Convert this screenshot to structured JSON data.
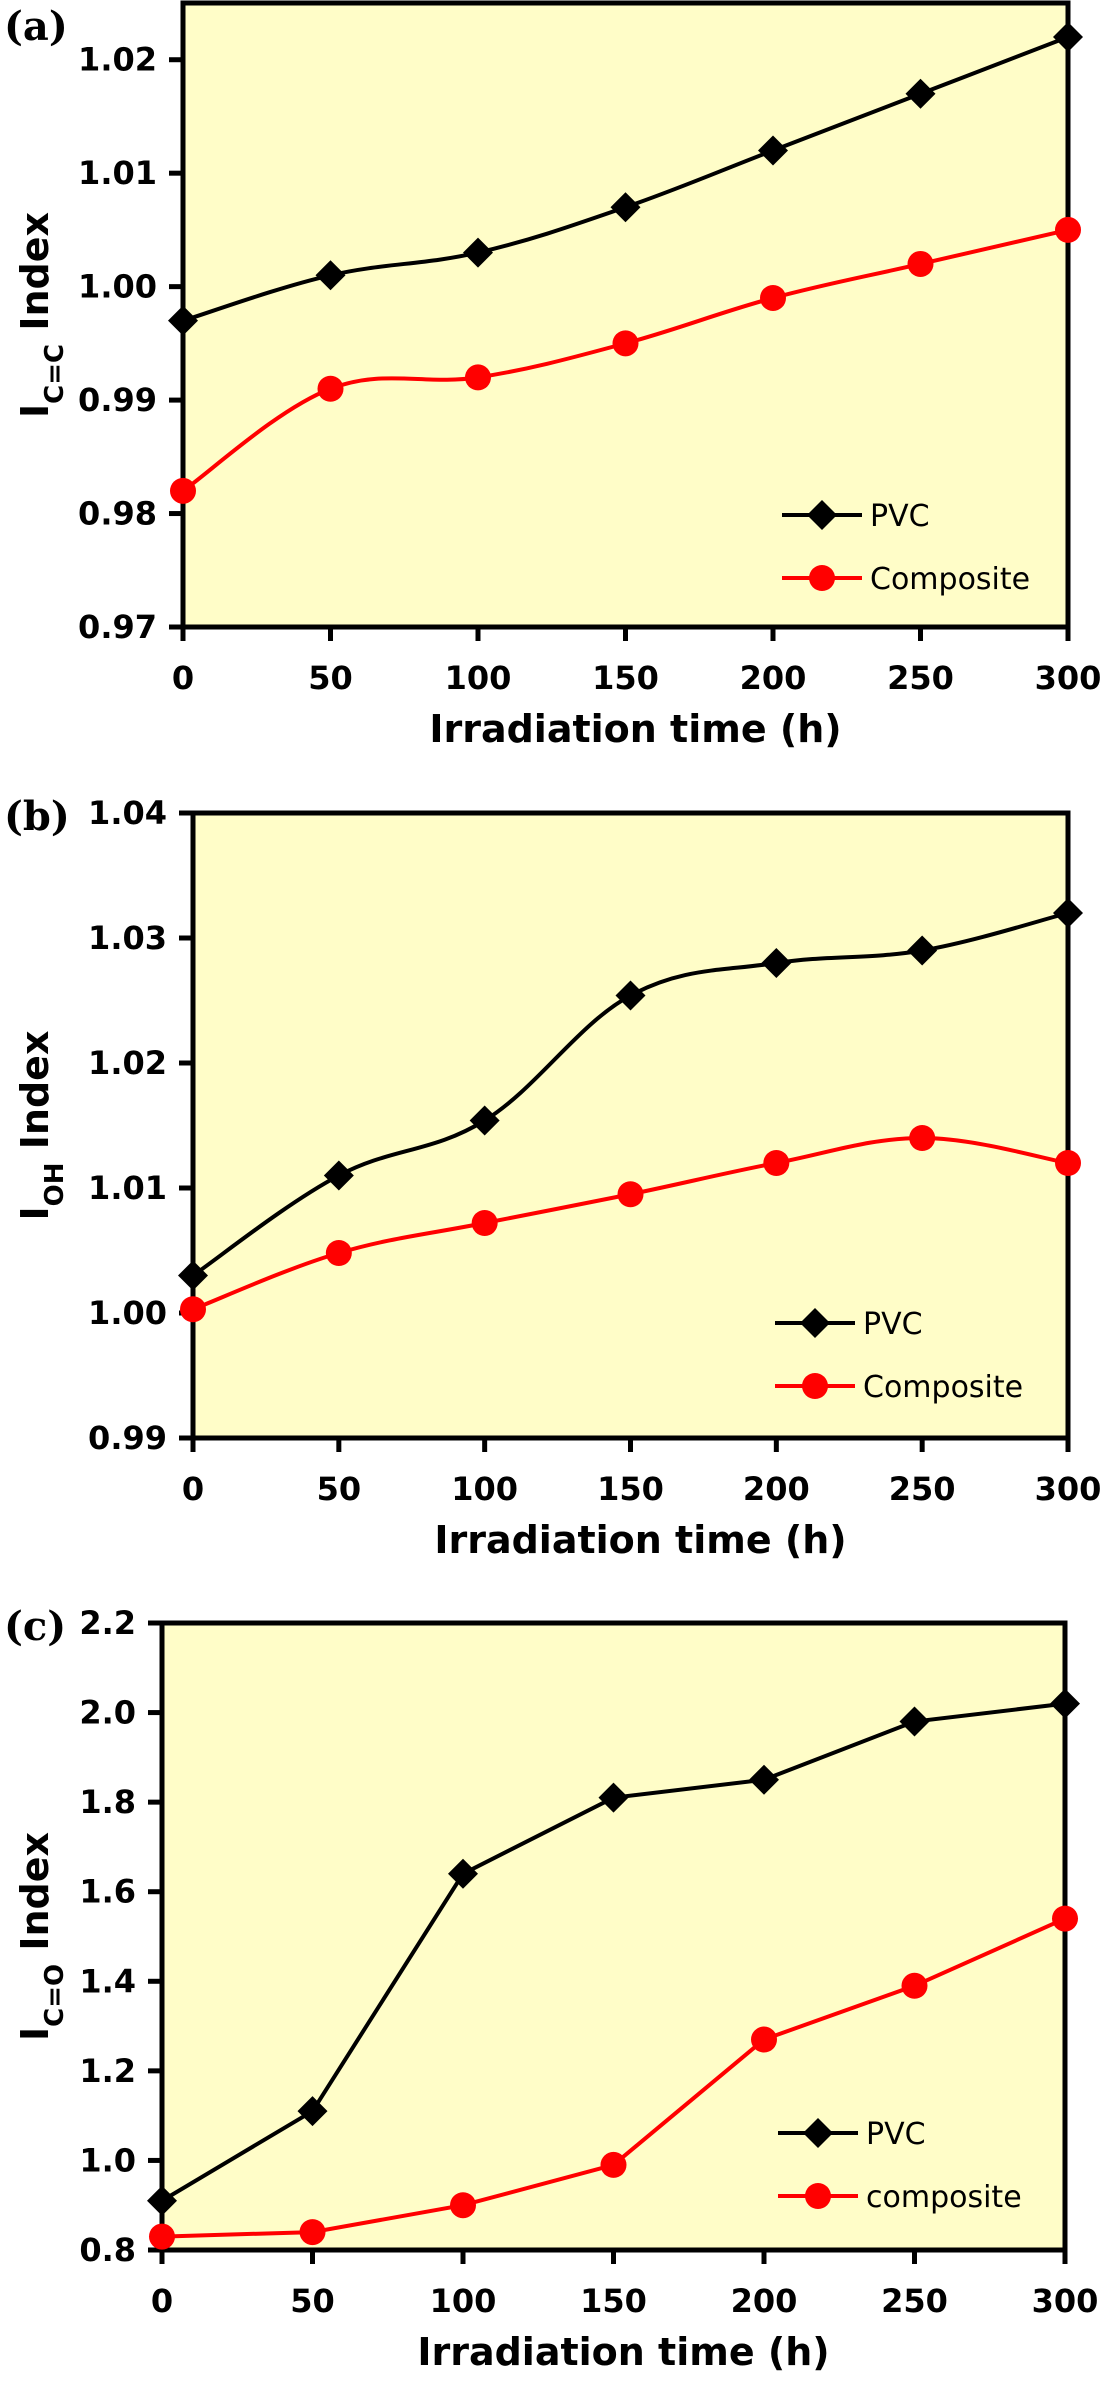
{
  "chart_data": [
    {
      "type": "line",
      "panel_label": "(a)",
      "title": "",
      "xlabel": "Irradiation time (h)",
      "ylabel_main": "I",
      "ylabel_sub": "C=C",
      "ylabel_suffix": " Index",
      "x": [
        0,
        50,
        100,
        150,
        200,
        250,
        300
      ],
      "xlim": [
        0,
        300
      ],
      "ylim": [
        0.97,
        1.025
      ],
      "xticks": [
        0,
        50,
        100,
        150,
        200,
        250,
        300
      ],
      "xtick_labels": [
        "0",
        "50",
        "100",
        "150",
        "200",
        "250",
        "300"
      ],
      "yticks": [
        0.97,
        0.98,
        0.99,
        1.0,
        1.01,
        1.02
      ],
      "ytick_labels": [
        "0.97",
        "0.98",
        "0.99",
        "1.00",
        "1.01",
        "1.02"
      ],
      "grid": false,
      "smooth": true,
      "legend_position": "bottom-right",
      "background": "#fffdc8",
      "series": [
        {
          "name": "PVC",
          "color": "#000000",
          "marker": "diamond",
          "values": [
            0.997,
            1.001,
            1.003,
            1.007,
            1.012,
            1.017,
            1.022
          ]
        },
        {
          "name": "Composite",
          "color": "#ff0000",
          "marker": "circle",
          "values": [
            0.982,
            0.991,
            0.992,
            0.995,
            0.999,
            1.002,
            1.005
          ]
        }
      ]
    },
    {
      "type": "line",
      "panel_label": "(b)",
      "title": "",
      "xlabel": "Irradiation time (h)",
      "ylabel_main": "I",
      "ylabel_sub": "OH",
      "ylabel_suffix": " Index",
      "x": [
        0,
        50,
        100,
        150,
        200,
        250,
        300
      ],
      "xlim": [
        0,
        300
      ],
      "ylim": [
        0.99,
        1.04
      ],
      "xticks": [
        0,
        50,
        100,
        150,
        200,
        250,
        300
      ],
      "xtick_labels": [
        "0",
        "50",
        "100",
        "150",
        "200",
        "250",
        "300"
      ],
      "yticks": [
        0.99,
        1.0,
        1.01,
        1.02,
        1.03,
        1.04
      ],
      "ytick_labels": [
        "0.99",
        "1.00",
        "1.01",
        "1.02",
        "1.03",
        "1.04"
      ],
      "grid": false,
      "smooth": true,
      "legend_position": "bottom-right",
      "background": "#fffdc8",
      "series": [
        {
          "name": "PVC",
          "color": "#000000",
          "marker": "diamond",
          "values": [
            1.003,
            1.011,
            1.0154,
            1.0254,
            1.028,
            1.029,
            1.032
          ]
        },
        {
          "name": "Composite",
          "color": "#ff0000",
          "marker": "circle",
          "values": [
            1.0003,
            1.0048,
            1.0072,
            1.0095,
            1.012,
            1.014,
            1.012
          ]
        }
      ]
    },
    {
      "type": "line",
      "panel_label": "(c)",
      "title": "",
      "xlabel": "Irradiation time (h)",
      "ylabel_main": "I",
      "ylabel_sub": "C=O",
      "ylabel_suffix": " Index",
      "x": [
        0,
        50,
        100,
        150,
        200,
        250,
        300
      ],
      "xlim": [
        0,
        300
      ],
      "ylim": [
        0.8,
        2.2
      ],
      "xticks": [
        0,
        50,
        100,
        150,
        200,
        250,
        300
      ],
      "xtick_labels": [
        "0",
        "50",
        "100",
        "150",
        "200",
        "250",
        "300"
      ],
      "yticks": [
        0.8,
        1.0,
        1.2,
        1.4,
        1.6,
        1.8,
        2.0,
        2.2
      ],
      "ytick_labels": [
        "0.8",
        "1.0",
        "1.2",
        "1.4",
        "1.6",
        "1.8",
        "2.0",
        "2.2"
      ],
      "grid": false,
      "smooth": false,
      "legend_position": "bottom-right",
      "background": "#fffdc8",
      "series": [
        {
          "name": "PVC",
          "color": "#000000",
          "marker": "diamond",
          "values": [
            0.91,
            1.11,
            1.64,
            1.81,
            1.85,
            1.98,
            2.02
          ]
        },
        {
          "name": "composite",
          "color": "#ff0000",
          "marker": "circle",
          "values": [
            0.83,
            0.84,
            0.9,
            0.99,
            1.27,
            1.39,
            1.54
          ]
        }
      ]
    }
  ]
}
